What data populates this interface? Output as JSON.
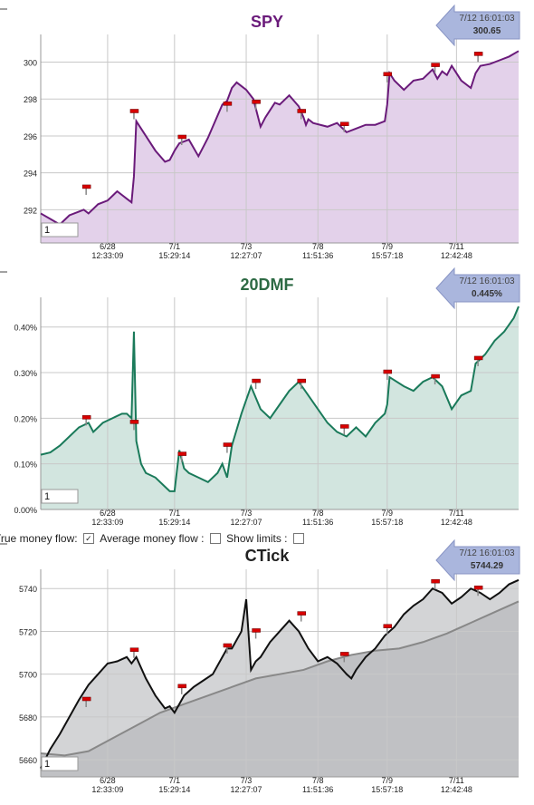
{
  "colors": {
    "spy_line": "#6a1a7a",
    "spy_fill": "#e3d1ea",
    "spy_title": "#6a1a7a",
    "dmf_line": "#1a7a5a",
    "dmf_fill": "#d2e5df",
    "dmf_title": "#2d6a44",
    "ctick_line": "#111111",
    "ctick_fill": "#d3d4d6",
    "ctick_avg": "#888888",
    "ctick_avg_fill": "#c0c1c4",
    "callout": "#aab6dd",
    "marker": "#d80000",
    "grid": "#c8c8c8"
  },
  "x_tick_labels": [
    {
      "date": "6/28",
      "time": "12:33:09"
    },
    {
      "date": "7/1",
      "time": "15:29:14"
    },
    {
      "date": "7/3",
      "time": "12:27:07"
    },
    {
      "date": "7/8",
      "time": "11:51:36"
    },
    {
      "date": "7/9",
      "time": "15:57:18"
    },
    {
      "date": "7/11",
      "time": "12:42:48"
    }
  ],
  "controls": {
    "true_money_flow_label": "True money flow:",
    "true_money_flow_checked": true,
    "average_money_flow_label": "Average money flow :",
    "average_money_flow_checked": false,
    "show_limits_label": "Show limits :",
    "show_limits_checked": false,
    "check_glyph": "✓"
  },
  "chart_data": [
    {
      "type": "area",
      "title": "SPY",
      "callout": {
        "time": "7/12 16:01:03",
        "value": "300.65"
      },
      "input_value": "1",
      "ylim": [
        290.2,
        301.5
      ],
      "y_ticks": [
        292,
        294,
        296,
        298,
        300
      ],
      "y_tick_labels": [
        "292",
        "294",
        "296",
        "298",
        "300"
      ],
      "x_tick_positions": [
        0.14,
        0.28,
        0.43,
        0.58,
        0.725,
        0.87
      ],
      "grid": true,
      "series": [
        {
          "x": [
            0.0,
            0.02,
            0.04,
            0.06,
            0.08,
            0.09,
            0.1,
            0.12,
            0.14,
            0.16,
            0.18,
            0.19,
            0.195,
            0.2,
            0.22,
            0.24,
            0.26,
            0.27,
            0.28,
            0.29,
            0.31,
            0.33,
            0.34,
            0.35,
            0.36,
            0.38,
            0.39,
            0.4,
            0.41,
            0.43,
            0.445,
            0.455,
            0.46,
            0.47,
            0.49,
            0.5,
            0.52,
            0.54,
            0.55,
            0.555,
            0.56,
            0.57,
            0.6,
            0.62,
            0.64,
            0.66,
            0.68,
            0.7,
            0.72,
            0.725,
            0.73,
            0.74,
            0.76,
            0.78,
            0.8,
            0.82,
            0.83,
            0.84,
            0.85,
            0.86,
            0.88,
            0.9,
            0.91,
            0.92,
            0.94,
            0.96,
            0.98,
            1.0
          ],
          "values": [
            291.8,
            291.5,
            291.2,
            291.7,
            291.9,
            292.0,
            291.8,
            292.3,
            292.5,
            293.0,
            292.6,
            292.4,
            293.8,
            296.8,
            296.0,
            295.2,
            294.6,
            294.7,
            295.2,
            295.6,
            295.8,
            294.9,
            295.4,
            295.9,
            296.5,
            297.7,
            297.9,
            298.6,
            298.9,
            298.5,
            298.0,
            297.0,
            296.5,
            297.0,
            297.8,
            297.7,
            298.2,
            297.6,
            297.0,
            296.6,
            296.9,
            296.7,
            296.5,
            296.7,
            296.2,
            296.4,
            296.6,
            296.6,
            296.8,
            297.7,
            299.4,
            299.0,
            298.5,
            299.0,
            299.1,
            299.6,
            299.1,
            299.5,
            299.3,
            299.8,
            299.0,
            298.6,
            299.4,
            299.8,
            299.9,
            300.1,
            300.3,
            300.6
          ]
        }
      ],
      "markers": [
        {
          "x": 0.095,
          "y": 293.2
        },
        {
          "x": 0.195,
          "y": 297.3
        },
        {
          "x": 0.295,
          "y": 295.9
        },
        {
          "x": 0.39,
          "y": 297.7
        },
        {
          "x": 0.45,
          "y": 297.8
        },
        {
          "x": 0.545,
          "y": 297.3
        },
        {
          "x": 0.635,
          "y": 296.6
        },
        {
          "x": 0.725,
          "y": 299.3
        },
        {
          "x": 0.825,
          "y": 299.8
        },
        {
          "x": 0.915,
          "y": 300.4
        }
      ]
    },
    {
      "type": "area",
      "title": "20DMF",
      "callout": {
        "time": "7/12 16:01:03",
        "value": "0.445%"
      },
      "input_value": "1",
      "ylim": [
        0.0,
        0.465
      ],
      "y_ticks": [
        0.0,
        0.1,
        0.2,
        0.3,
        0.4
      ],
      "y_tick_labels": [
        "0.00%",
        "0.10%",
        "0.20%",
        "0.30%",
        "0.40%"
      ],
      "x_tick_positions": [
        0.14,
        0.28,
        0.43,
        0.58,
        0.725,
        0.87
      ],
      "grid": true,
      "series": [
        {
          "x": [
            0.0,
            0.02,
            0.04,
            0.06,
            0.08,
            0.1,
            0.11,
            0.13,
            0.15,
            0.17,
            0.18,
            0.19,
            0.195,
            0.2,
            0.21,
            0.22,
            0.24,
            0.26,
            0.27,
            0.28,
            0.29,
            0.3,
            0.31,
            0.33,
            0.35,
            0.37,
            0.38,
            0.39,
            0.4,
            0.42,
            0.43,
            0.44,
            0.46,
            0.48,
            0.5,
            0.52,
            0.54,
            0.56,
            0.58,
            0.6,
            0.62,
            0.64,
            0.66,
            0.68,
            0.7,
            0.72,
            0.725,
            0.73,
            0.76,
            0.78,
            0.8,
            0.82,
            0.84,
            0.86,
            0.88,
            0.9,
            0.91,
            0.93,
            0.95,
            0.97,
            0.99,
            1.0
          ],
          "values": [
            0.12,
            0.125,
            0.14,
            0.16,
            0.18,
            0.19,
            0.17,
            0.19,
            0.2,
            0.21,
            0.21,
            0.2,
            0.39,
            0.15,
            0.1,
            0.08,
            0.07,
            0.05,
            0.04,
            0.04,
            0.13,
            0.09,
            0.08,
            0.07,
            0.06,
            0.08,
            0.1,
            0.07,
            0.14,
            0.21,
            0.24,
            0.27,
            0.22,
            0.2,
            0.23,
            0.26,
            0.28,
            0.25,
            0.22,
            0.19,
            0.17,
            0.16,
            0.18,
            0.16,
            0.19,
            0.21,
            0.23,
            0.29,
            0.27,
            0.26,
            0.28,
            0.29,
            0.27,
            0.22,
            0.25,
            0.26,
            0.32,
            0.34,
            0.37,
            0.39,
            0.42,
            0.445
          ]
        }
      ],
      "markers": [
        {
          "x": 0.095,
          "y": 0.2
        },
        {
          "x": 0.195,
          "y": 0.19
        },
        {
          "x": 0.295,
          "y": 0.12
        },
        {
          "x": 0.39,
          "y": 0.14
        },
        {
          "x": 0.45,
          "y": 0.28
        },
        {
          "x": 0.545,
          "y": 0.28
        },
        {
          "x": 0.635,
          "y": 0.18
        },
        {
          "x": 0.725,
          "y": 0.3
        },
        {
          "x": 0.825,
          "y": 0.29
        },
        {
          "x": 0.915,
          "y": 0.33
        }
      ]
    },
    {
      "type": "area",
      "title": "CTick",
      "callout": {
        "time": "7/12 16:01:03",
        "value": "5744.29"
      },
      "input_value": "1",
      "ylim": [
        5652,
        5749
      ],
      "y_ticks": [
        5660,
        5680,
        5700,
        5720,
        5740
      ],
      "y_tick_labels": [
        "5660",
        "5680",
        "5700",
        "5720",
        "5740"
      ],
      "x_tick_positions": [
        0.14,
        0.28,
        0.43,
        0.58,
        0.725,
        0.87
      ],
      "grid": true,
      "series": [
        {
          "x": [
            0.0,
            0.02,
            0.04,
            0.06,
            0.08,
            0.1,
            0.12,
            0.14,
            0.16,
            0.18,
            0.19,
            0.2,
            0.22,
            0.24,
            0.26,
            0.27,
            0.28,
            0.3,
            0.32,
            0.34,
            0.36,
            0.38,
            0.39,
            0.4,
            0.42,
            0.43,
            0.44,
            0.45,
            0.46,
            0.48,
            0.5,
            0.52,
            0.54,
            0.56,
            0.58,
            0.6,
            0.62,
            0.64,
            0.65,
            0.66,
            0.68,
            0.7,
            0.72,
            0.74,
            0.76,
            0.78,
            0.8,
            0.82,
            0.84,
            0.86,
            0.88,
            0.9,
            0.92,
            0.94,
            0.96,
            0.98,
            1.0
          ],
          "values": [
            5656,
            5665,
            5672,
            5680,
            5688,
            5695,
            5700,
            5705,
            5706,
            5708,
            5705,
            5708,
            5698,
            5690,
            5684,
            5685,
            5682,
            5690,
            5694,
            5697,
            5700,
            5708,
            5712,
            5712,
            5720,
            5735,
            5702,
            5706,
            5708,
            5715,
            5720,
            5725,
            5720,
            5712,
            5706,
            5708,
            5705,
            5700,
            5698,
            5702,
            5708,
            5712,
            5718,
            5722,
            5728,
            5732,
            5735,
            5740,
            5738,
            5733,
            5736,
            5740,
            5738,
            5735,
            5738,
            5742,
            5744
          ]
        },
        {
          "x": [
            0.0,
            0.05,
            0.1,
            0.15,
            0.2,
            0.25,
            0.3,
            0.35,
            0.4,
            0.45,
            0.5,
            0.55,
            0.6,
            0.65,
            0.7,
            0.75,
            0.8,
            0.85,
            0.9,
            0.95,
            1.0
          ],
          "values": [
            5663,
            5662,
            5664,
            5670,
            5676,
            5682,
            5686,
            5690,
            5694,
            5698,
            5700,
            5702,
            5706,
            5709,
            5711,
            5712,
            5715,
            5719,
            5724,
            5729,
            5734
          ]
        }
      ],
      "markers": [
        {
          "x": 0.095,
          "y": 5688
        },
        {
          "x": 0.195,
          "y": 5711
        },
        {
          "x": 0.295,
          "y": 5694
        },
        {
          "x": 0.39,
          "y": 5713
        },
        {
          "x": 0.45,
          "y": 5720
        },
        {
          "x": 0.545,
          "y": 5728
        },
        {
          "x": 0.635,
          "y": 5709
        },
        {
          "x": 0.725,
          "y": 5722
        },
        {
          "x": 0.825,
          "y": 5743
        },
        {
          "x": 0.915,
          "y": 5740
        }
      ]
    }
  ]
}
